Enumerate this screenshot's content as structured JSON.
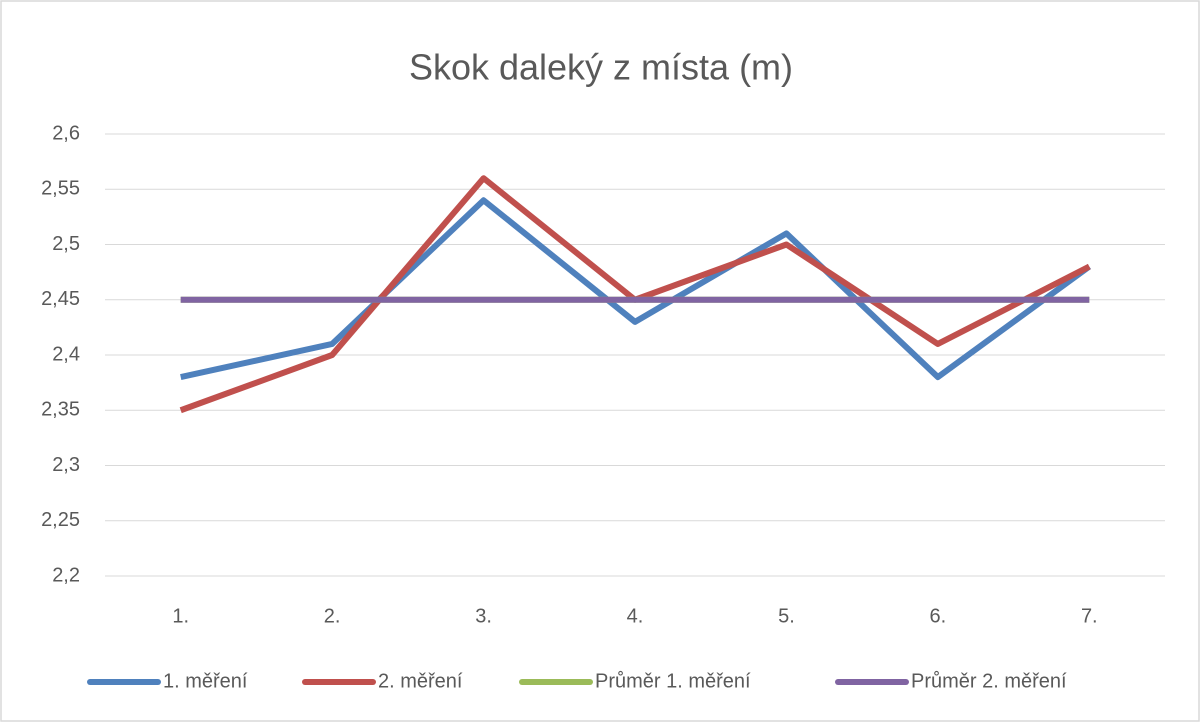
{
  "chart_data": {
    "type": "line",
    "title": "Skok daleký z místa (m)",
    "categories": [
      "1.",
      "2.",
      "3.",
      "4.",
      "5.",
      "6.",
      "7."
    ],
    "series": [
      {
        "name": "1. měření",
        "color": "#4f81bd",
        "values": [
          2.38,
          2.41,
          2.54,
          2.43,
          2.51,
          2.38,
          2.48
        ]
      },
      {
        "name": "2. měření",
        "color": "#c0504d",
        "values": [
          2.35,
          2.4,
          2.56,
          2.45,
          2.5,
          2.41,
          2.48
        ]
      },
      {
        "name": "Průměr 1. měření",
        "color": "#9bbb59",
        "values": [
          2.45,
          2.45,
          2.45,
          2.45,
          2.45,
          2.45,
          2.45
        ]
      },
      {
        "name": "Průměr 2. měření",
        "color": "#8064a2",
        "values": [
          2.45,
          2.45,
          2.45,
          2.45,
          2.45,
          2.45,
          2.45
        ]
      }
    ],
    "ylim": [
      2.2,
      2.6
    ],
    "yticks": [
      {
        "value": 2.2,
        "label": "2,2"
      },
      {
        "value": 2.25,
        "label": "2,25"
      },
      {
        "value": 2.3,
        "label": "2,3"
      },
      {
        "value": 2.35,
        "label": "2,35"
      },
      {
        "value": 2.4,
        "label": "2,4"
      },
      {
        "value": 2.45,
        "label": "2,45"
      },
      {
        "value": 2.5,
        "label": "2,5"
      },
      {
        "value": 2.55,
        "label": "2,55"
      },
      {
        "value": 2.6,
        "label": "2,6"
      }
    ],
    "grid": true,
    "legend": "bottom"
  }
}
